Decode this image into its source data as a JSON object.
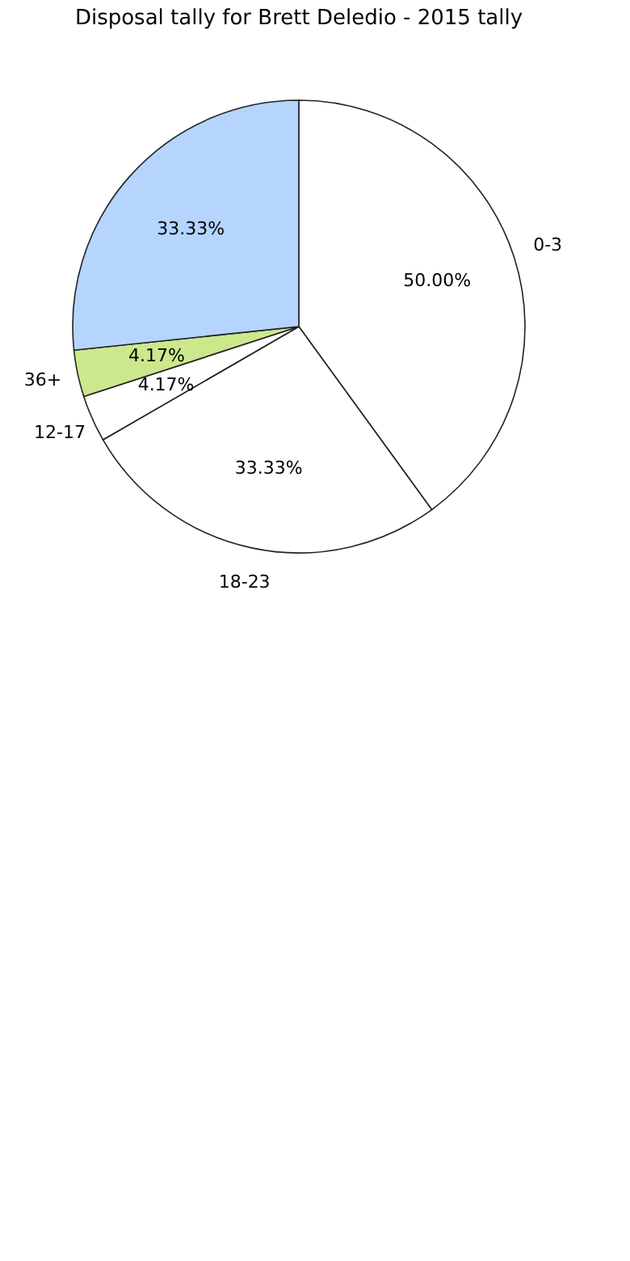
{
  "chart_data": {
    "type": "pie",
    "title": "Disposal tally for Brett Deledio - 2015 tally",
    "categories": [
      "0-3",
      "18-23",
      "12-17",
      "36+",
      null
    ],
    "values": [
      50.0,
      33.33,
      4.17,
      4.17,
      33.33
    ],
    "colors": [
      "#ffffff",
      "#ffffff",
      "#ffffff",
      "#cce88c",
      "#b5d5ff"
    ],
    "value_labels": [
      "50.00%",
      "33.33%",
      "4.17%",
      "4.17%",
      "33.33%"
    ]
  }
}
